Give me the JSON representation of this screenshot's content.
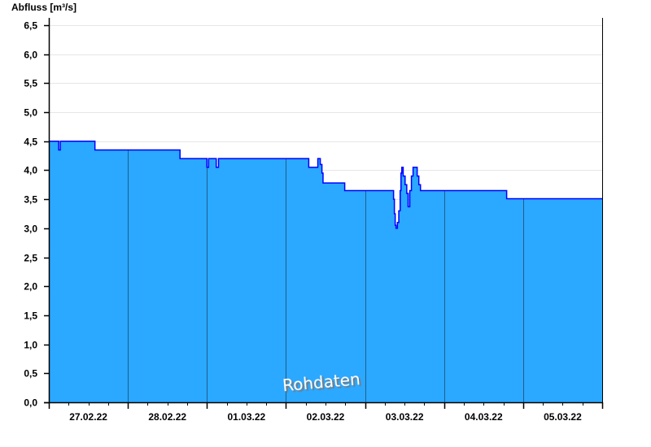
{
  "chart_data": {
    "type": "area",
    "ylabel": "Abfluss [m³/s]",
    "ylim": [
      0,
      6.5
    ],
    "yticks": [
      "0,0",
      "0,5",
      "1,0",
      "1,5",
      "2,0",
      "2,5",
      "3,0",
      "3,5",
      "4,0",
      "4,5",
      "5,0",
      "5,5",
      "6,0",
      "6,5"
    ],
    "xlim": [
      "27.02.22 00:00",
      "06.03.22 00:00"
    ],
    "xticks": [
      "27.02.22",
      "28.02.22",
      "01.03.22",
      "02.03.22",
      "03.03.22",
      "04.03.22",
      "05.03.22"
    ],
    "grid": true,
    "step": true,
    "colors": {
      "fill": "#2ba8ff",
      "line": "#0000ff",
      "day_line": "#1f5f8f",
      "grid": "#e6e6e6"
    },
    "watermark": "Rohdaten",
    "points": [
      [
        "27.02.22 00:00",
        4.5
      ],
      [
        "27.02.22 02:45",
        4.5
      ],
      [
        "27.02.22 03:00",
        4.35
      ],
      [
        "27.02.22 03:20",
        4.35
      ],
      [
        "27.02.22 03:30",
        4.5
      ],
      [
        "27.02.22 13:35",
        4.5
      ],
      [
        "27.02.22 14:00",
        4.35
      ],
      [
        "28.02.22 15:35",
        4.35
      ],
      [
        "28.02.22 15:50",
        4.2
      ],
      [
        "28.02.22 23:45",
        4.2
      ],
      [
        "01.03.22 00:00",
        4.05
      ],
      [
        "01.03.22 00:25",
        4.05
      ],
      [
        "01.03.22 00:30",
        4.2
      ],
      [
        "01.03.22 02:35",
        4.2
      ],
      [
        "01.03.22 02:50",
        4.05
      ],
      [
        "01.03.22 03:15",
        4.05
      ],
      [
        "01.03.22 03:30",
        4.2
      ],
      [
        "02.03.22 06:40",
        4.2
      ],
      [
        "02.03.22 06:55",
        4.05
      ],
      [
        "02.03.22 09:25",
        4.05
      ],
      [
        "02.03.22 09:40",
        4.2
      ],
      [
        "02.03.22 10:00",
        4.2
      ],
      [
        "02.03.22 10:25",
        4.1
      ],
      [
        "02.03.22 10:55",
        3.95
      ],
      [
        "02.03.22 11:15",
        3.78
      ],
      [
        "02.03.22 17:35",
        3.78
      ],
      [
        "02.03.22 17:50",
        3.65
      ],
      [
        "03.03.22 08:20",
        3.65
      ],
      [
        "03.03.22 08:40",
        3.5
      ],
      [
        "03.03.22 08:55",
        3.25
      ],
      [
        "03.03.22 09:10",
        3.05
      ],
      [
        "03.03.22 09:25",
        3.0
      ],
      [
        "03.03.22 09:50",
        3.1
      ],
      [
        "03.03.22 10:15",
        3.3
      ],
      [
        "03.03.22 10:40",
        3.65
      ],
      [
        "03.03.22 10:55",
        3.95
      ],
      [
        "03.03.22 11:10",
        4.05
      ],
      [
        "03.03.22 11:35",
        3.9
      ],
      [
        "03.03.22 12:10",
        3.75
      ],
      [
        "03.03.22 12:40",
        3.6
      ],
      [
        "03.03.22 13:05",
        3.37
      ],
      [
        "03.03.22 13:35",
        3.65
      ],
      [
        "03.03.22 14:05",
        3.9
      ],
      [
        "03.03.22 14:35",
        4.05
      ],
      [
        "03.03.22 15:20",
        4.05
      ],
      [
        "03.03.22 15:50",
        3.9
      ],
      [
        "03.03.22 16:20",
        3.75
      ],
      [
        "03.03.22 16:50",
        3.65
      ],
      [
        "04.03.22 18:50",
        3.65
      ],
      [
        "04.03.22 19:00",
        3.51
      ],
      [
        "06.03.22 00:00",
        3.51
      ]
    ]
  }
}
